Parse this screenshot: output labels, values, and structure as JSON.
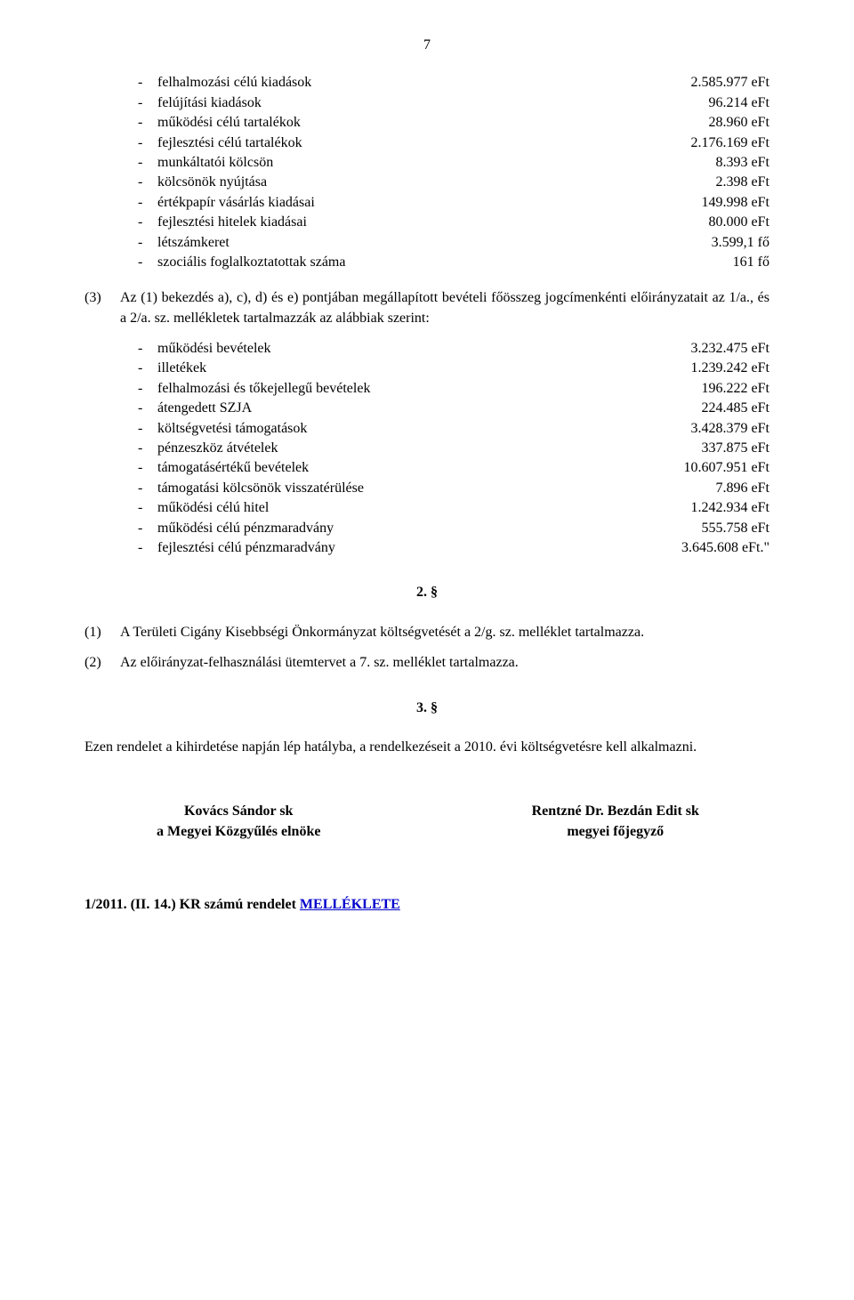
{
  "page_number": "7",
  "list1": [
    {
      "label": "felhalmozási célú kiadások",
      "value": "2.585.977 eFt"
    },
    {
      "label": "felújítási kiadások",
      "value": "96.214 eFt"
    },
    {
      "label": "működési célú tartalékok",
      "value": "28.960 eFt"
    },
    {
      "label": "fejlesztési célú tartalékok",
      "value": "2.176.169 eFt"
    },
    {
      "label": "munkáltatói kölcsön",
      "value": "8.393 eFt"
    },
    {
      "label": "kölcsönök nyújtása",
      "value": "2.398 eFt"
    },
    {
      "label": "értékpapír vásárlás kiadásai",
      "value": "149.998 eFt"
    },
    {
      "label": "fejlesztési hitelek kiadásai",
      "value": "80.000 eFt"
    },
    {
      "label": "létszámkeret",
      "value": "3.599,1 fő"
    },
    {
      "label": "szociális foglalkoztatottak száma",
      "value": "161 fő"
    }
  ],
  "para3": {
    "num": "(3)",
    "text": "Az (1) bekezdés a), c), d) és e) pontjában megállapított bevételi főösszeg jogcímenkénti előirányzatait az 1/a., és a 2/a. sz. mellékletek tartalmazzák az alábbiak szerint:"
  },
  "list2": [
    {
      "label": "működési bevételek",
      "value": "3.232.475 eFt"
    },
    {
      "label": "illetékek",
      "value": "1.239.242 eFt"
    },
    {
      "label": "felhalmozási és tőkejellegű bevételek",
      "value": "196.222 eFt"
    },
    {
      "label": "átengedett SZJA",
      "value": "224.485 eFt"
    },
    {
      "label": "költségvetési támogatások",
      "value": "3.428.379 eFt"
    },
    {
      "label": "pénzeszköz átvételek",
      "value": "337.875 eFt"
    },
    {
      "label": "támogatásértékű bevételek",
      "value": "10.607.951 eFt"
    },
    {
      "label": "támogatási kölcsönök visszatérülése",
      "value": "7.896 eFt"
    },
    {
      "label": "működési célú hitel",
      "value": "1.242.934 eFt"
    },
    {
      "label": "működési célú pénzmaradvány",
      "value": "555.758 eFt"
    },
    {
      "label": "fejlesztési célú pénzmaradvány",
      "value": "3.645.608 eFt.\""
    }
  ],
  "section2": {
    "heading": "2. §",
    "p1": {
      "num": "(1)",
      "text": "A Területi Cigány Kisebbségi Önkormányzat költségvetését a 2/g. sz. melléklet tartalmazza."
    },
    "p2": {
      "num": "(2)",
      "text": "Az előirányzat-felhasználási ütemtervet a 7. sz. melléklet tartalmazza."
    }
  },
  "section3": {
    "heading": "3. §",
    "text": "Ezen rendelet a kihirdetése napján lép hatályba, a rendelkezéseit a 2010. évi költségvetésre kell alkalmazni."
  },
  "signatures": {
    "left": {
      "name": "Kovács Sándor sk",
      "title": "a Megyei Közgyűlés elnöke"
    },
    "right": {
      "name": "Rentzné Dr. Bezdán Edit sk",
      "title": "megyei főjegyző"
    }
  },
  "footer": {
    "prefix": "1/2011. (II. 14.) KR számú rendelet ",
    "link": "MELLÉKLETE"
  }
}
